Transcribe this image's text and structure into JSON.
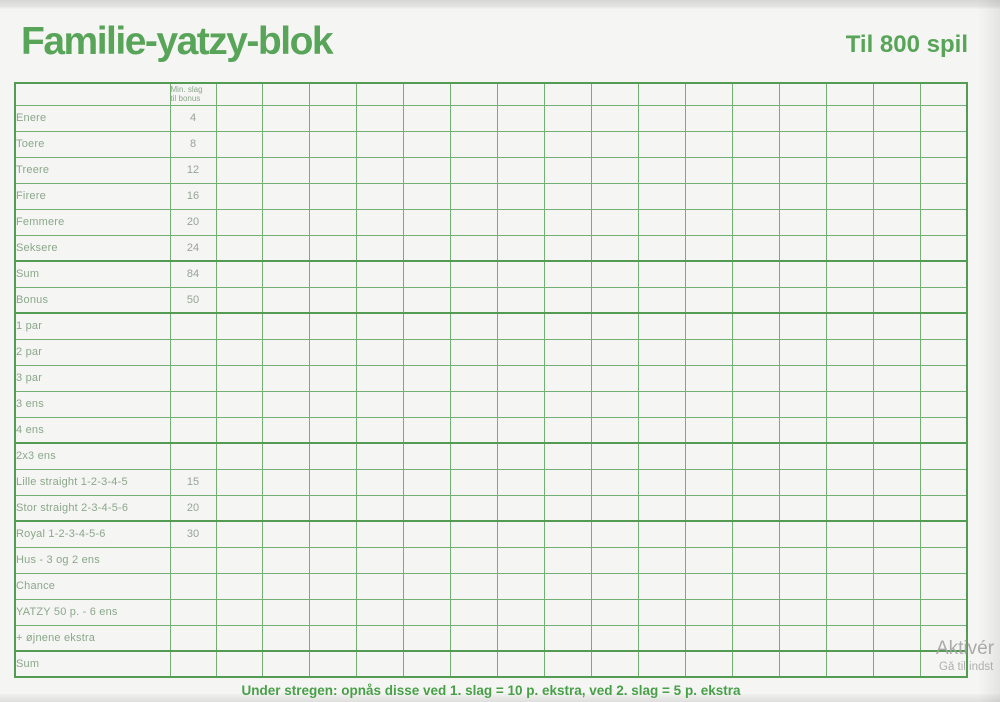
{
  "page": {
    "title": "Familie-yatzy-blok",
    "subtitle": "Til 800 spil",
    "footer_note": "Under stregen: opnås disse ved 1. slag = 10 p. ekstra, ved 2. slag = 5 p. ekstra"
  },
  "colors": {
    "paper": "#f5f5f3",
    "title_green": "#58a458",
    "grid_green": "#74b074",
    "grid_green_dark": "#549c54",
    "label_text": "#8ba88b",
    "value_text": "#97a497",
    "footer_green": "#47a047",
    "watermark_gray": "#a3a3a3"
  },
  "table": {
    "min_slag_header": [
      "Min. slag",
      "til bonus"
    ],
    "score_column_count": 16,
    "rows": [
      {
        "label": "Enere",
        "min_slag": "4",
        "thick_top": false
      },
      {
        "label": "Toere",
        "min_slag": "8",
        "thick_top": false
      },
      {
        "label": "Treere",
        "min_slag": "12",
        "thick_top": false
      },
      {
        "label": "Firere",
        "min_slag": "16",
        "thick_top": false
      },
      {
        "label": "Femmere",
        "min_slag": "20",
        "thick_top": false
      },
      {
        "label": "Seksere",
        "min_slag": "24",
        "thick_top": false
      },
      {
        "label": "Sum",
        "min_slag": "84",
        "thick_top": true
      },
      {
        "label": "Bonus",
        "min_slag": "50",
        "thick_top": false
      },
      {
        "label": "1 par",
        "min_slag": "",
        "thick_top": true
      },
      {
        "label": "2 par",
        "min_slag": "",
        "thick_top": false
      },
      {
        "label": "3 par",
        "min_slag": "",
        "thick_top": false
      },
      {
        "label": "3 ens",
        "min_slag": "",
        "thick_top": false
      },
      {
        "label": "4 ens",
        "min_slag": "",
        "thick_top": false
      },
      {
        "label": "2x3 ens",
        "min_slag": "",
        "thick_top": true
      },
      {
        "label": "Lille straight 1-2-3-4-5",
        "min_slag": "15",
        "thick_top": false
      },
      {
        "label": "Stor straight 2-3-4-5-6",
        "min_slag": "20",
        "thick_top": false
      },
      {
        "label": "Royal 1-2-3-4-5-6",
        "min_slag": "30",
        "thick_top": true
      },
      {
        "label": "Hus - 3 og 2 ens",
        "min_slag": "",
        "thick_top": false
      },
      {
        "label": "Chance",
        "min_slag": "",
        "thick_top": false
      },
      {
        "label": "YATZY 50 p. - 6 ens",
        "min_slag": "",
        "thick_top": false
      },
      {
        "label": "+ øjnene ekstra",
        "min_slag": "",
        "thick_top": false
      },
      {
        "label": "Sum",
        "min_slag": "",
        "thick_top": true
      }
    ]
  },
  "watermark": {
    "line1": "Aktivér",
    "line2": "Gå til indst"
  }
}
